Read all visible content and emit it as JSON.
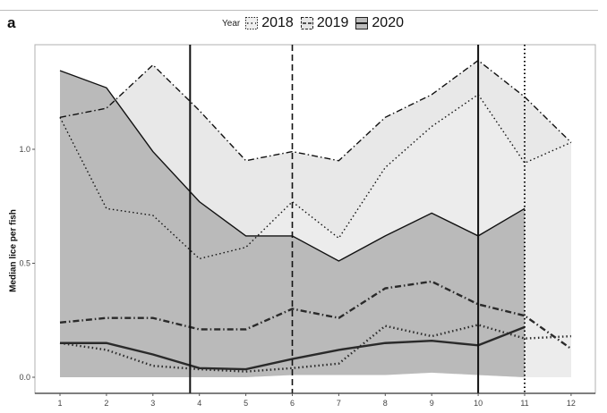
{
  "panel_label": "a",
  "legend": {
    "title": "Year",
    "items": [
      {
        "label": "2018",
        "dash": "1.5,2.5",
        "fill": "#efefef"
      },
      {
        "label": "2019",
        "dash": "6,3,1.5,3",
        "fill": "#e6e6e6"
      },
      {
        "label": "2020",
        "dash": "",
        "fill": "#bdbdbd"
      }
    ]
  },
  "chart_data": {
    "type": "area",
    "title": "",
    "xlabel": "",
    "ylabel": "Median lice per fish",
    "xlim": [
      0.45,
      12.5
    ],
    "ylim": [
      -0.07,
      1.47
    ],
    "x_ticks": [
      1,
      2,
      3,
      4,
      5,
      6,
      7,
      8,
      9,
      10,
      11,
      12
    ],
    "y_ticks": [
      0.0,
      0.5,
      1.0
    ],
    "y_tick_labels": [
      "0.0",
      "0.5",
      "1.0"
    ],
    "grid": false,
    "legend_position": "top",
    "series": [
      {
        "name": "2018",
        "x": [
          1,
          2,
          3,
          4,
          5,
          6,
          7,
          8,
          9,
          10,
          11,
          12
        ],
        "median": [
          0.15,
          0.12,
          0.05,
          0.035,
          0.025,
          0.04,
          0.06,
          0.225,
          0.18,
          0.23,
          0.17,
          0.18
        ],
        "upper": [
          1.14,
          0.74,
          0.71,
          0.52,
          0.57,
          0.77,
          0.61,
          0.92,
          1.1,
          1.24,
          0.94,
          1.03
        ],
        "lower": [
          0,
          0,
          0,
          0,
          0,
          0.01,
          0.01,
          0.01,
          0.02,
          0.01,
          0,
          0
        ],
        "fill": "#ececec",
        "line_dash": "1.5,3"
      },
      {
        "name": "2019",
        "x": [
          1,
          2,
          3,
          4,
          5,
          6,
          7,
          8,
          9,
          10,
          11,
          12
        ],
        "median": [
          0.24,
          0.26,
          0.26,
          0.21,
          0.21,
          0.3,
          0.26,
          0.39,
          0.42,
          0.32,
          0.27,
          0.125
        ],
        "upper": [
          1.14,
          1.18,
          1.37,
          1.17,
          0.95,
          0.99,
          0.95,
          1.14,
          1.24,
          1.39,
          1.23,
          1.03
        ],
        "lower": [
          0,
          0,
          0,
          0,
          0,
          0.01,
          0.01,
          0.01,
          0.02,
          0.01,
          0,
          0
        ],
        "fill": "#e4e4e4",
        "line_dash": "7,3,1.5,3"
      },
      {
        "name": "2020",
        "x": [
          1,
          2,
          3,
          4,
          5,
          6,
          7,
          8,
          9,
          10,
          11
        ],
        "median": [
          0.15,
          0.15,
          0.1,
          0.04,
          0.035,
          0.08,
          0.12,
          0.15,
          0.16,
          0.14,
          0.22
        ],
        "upper": [
          1.345,
          1.27,
          0.99,
          0.77,
          0.62,
          0.62,
          0.51,
          0.62,
          0.72,
          0.62,
          0.74
        ],
        "lower": [
          0,
          0,
          0,
          0,
          0,
          0.01,
          0.01,
          0.01,
          0.02,
          0.01,
          0
        ],
        "fill": "#bababa",
        "line_dash": ""
      }
    ],
    "vertical_lines": [
      {
        "x": 3.8,
        "style": "solid",
        "dash": "",
        "width": 2
      },
      {
        "x": 6,
        "style": "dashed",
        "dash": "7,4",
        "width": 1.6
      },
      {
        "x": 10,
        "style": "solid",
        "dash": "",
        "width": 2
      },
      {
        "x": 11,
        "style": "dotted",
        "dash": "1.5,3",
        "width": 2
      }
    ]
  }
}
